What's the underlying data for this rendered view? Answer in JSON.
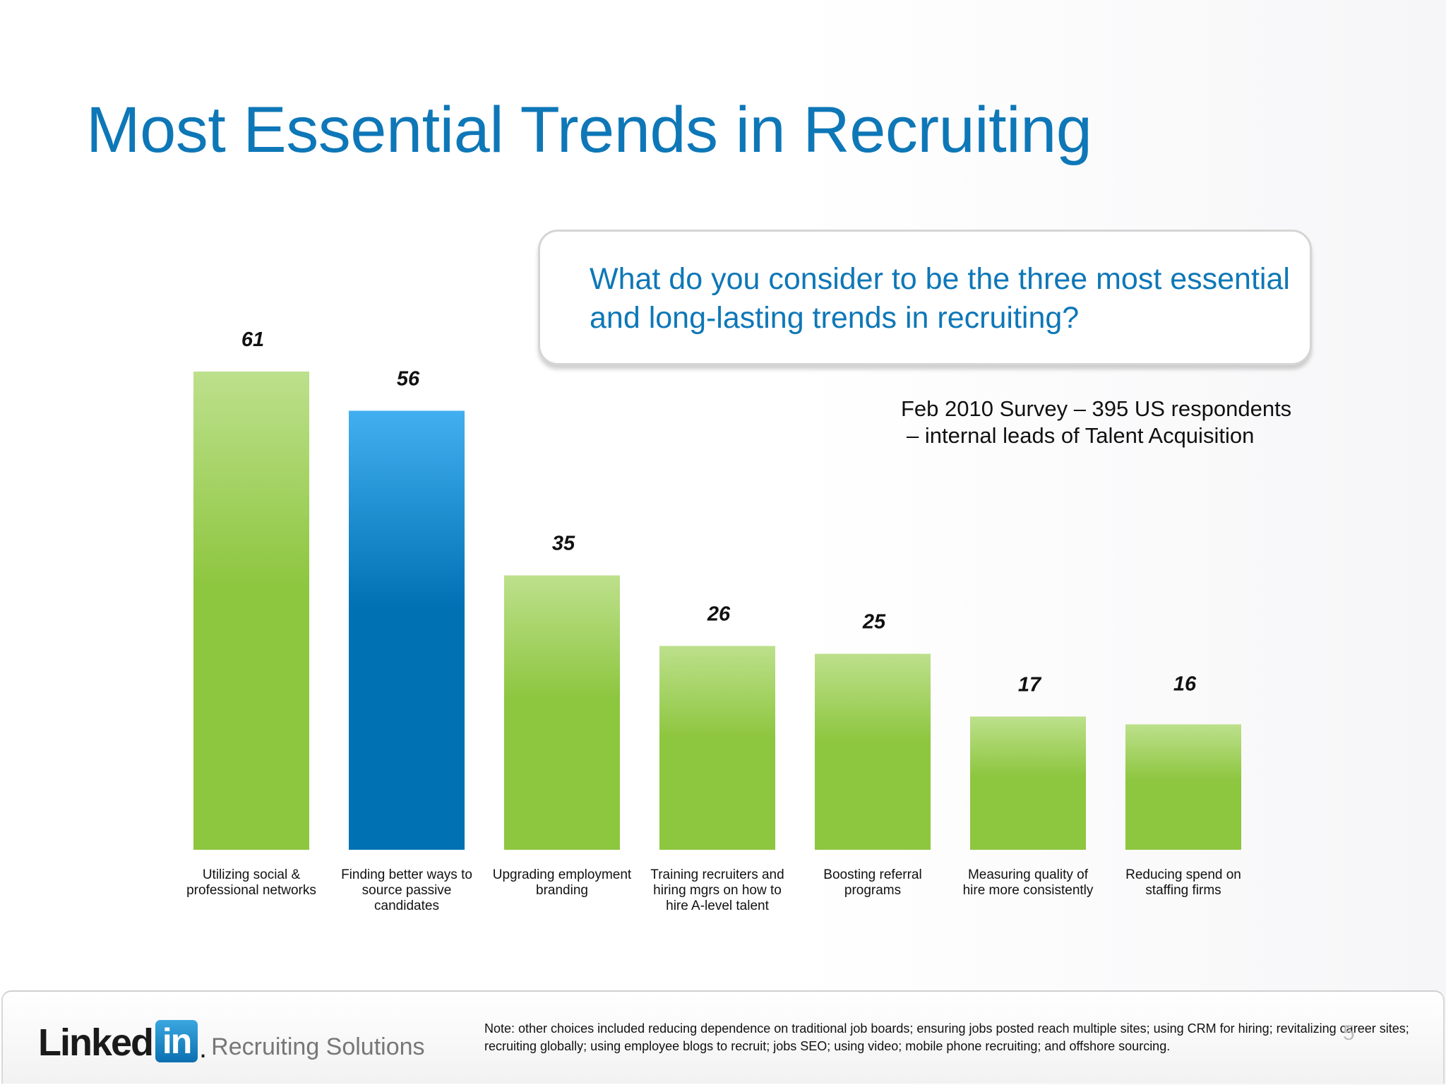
{
  "slide": {
    "title": "Most Essential Trends in Recruiting",
    "question": "What do you consider to be the three most essential and long-lasting trends in recruiting?",
    "survey_line1": "Feb 2010 Survey – 395 US respondents",
    "survey_line2": "– internal leads of Talent Acquisition"
  },
  "footer": {
    "logo_text": "Linked",
    "logo_in": "in",
    "logo_dot": ".",
    "logo_subtitle": "Recruiting Solutions",
    "note": "Note: other choices included reducing dependence on traditional job boards; ensuring jobs posted reach multiple sites; using CRM for hiring; revitalizing career sites; recruiting globally; using employee blogs to recruit; jobs SEO; using video; mobile phone recruiting; and offshore sourcing.",
    "page_number": "5"
  },
  "colors": {
    "title": "#0e77b7",
    "bar_green_top": "#bde08c",
    "bar_green_bottom": "#8dc63f",
    "bar_blue_top": "#42aff0",
    "bar_blue_bottom": "#0071b3"
  },
  "chart_data": {
    "type": "bar",
    "categories": [
      "Utilizing social & professional networks",
      "Finding better ways to source passive candidates",
      "Upgrading employment branding",
      "Training recruiters and hiring mgrs on how to hire A-level talent",
      "Boosting referral programs",
      "Measuring quality of hire more consistently",
      "Reducing spend on staffing firms"
    ],
    "values": [
      61,
      56,
      35,
      26,
      25,
      17,
      16
    ],
    "highlight": [
      false,
      true,
      false,
      false,
      false,
      false,
      false
    ],
    "data_labels": [
      "61",
      "56",
      "35",
      "26",
      "25",
      "17",
      "16"
    ],
    "title": "",
    "xlabel": "",
    "ylabel": "",
    "ylim": [
      0,
      61
    ],
    "grid": false,
    "legend": "none"
  }
}
